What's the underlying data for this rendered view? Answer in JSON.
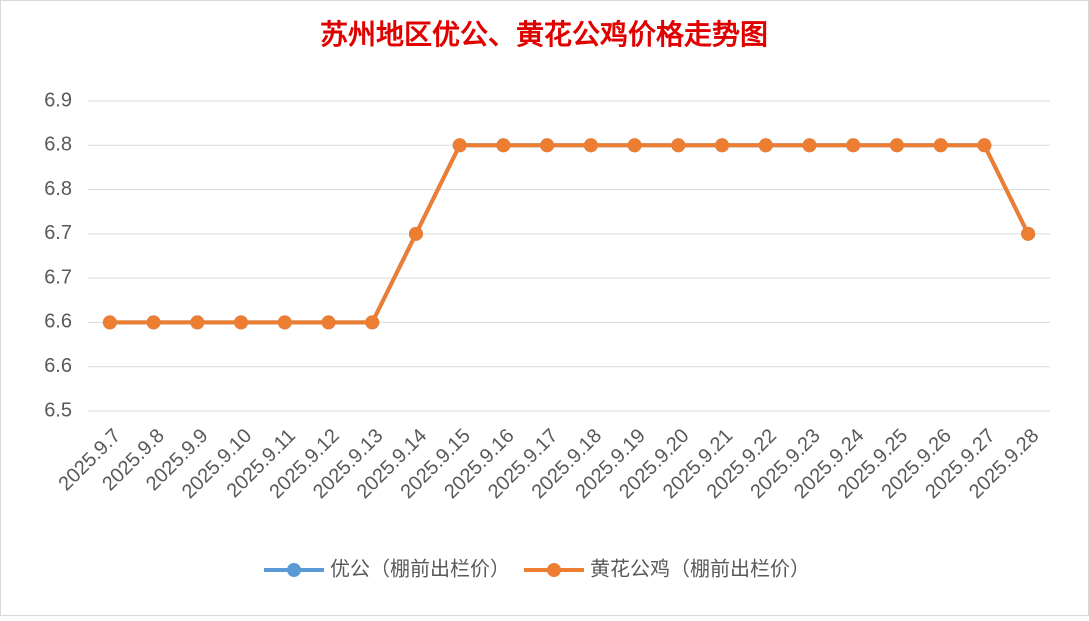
{
  "chart_data": {
    "type": "line",
    "title": "苏州地区优公、黄花公鸡价格走势图",
    "categories": [
      "2025.9.7",
      "2025.9.8",
      "2025.9.9",
      "2025.9.10",
      "2025.9.11",
      "2025.9.12",
      "2025.9.13",
      "2025.9.14",
      "2025.9.15",
      "2025.9.16",
      "2025.9.17",
      "2025.9.18",
      "2025.9.19",
      "2025.9.20",
      "2025.9.21",
      "2025.9.22",
      "2025.9.23",
      "2025.9.24",
      "2025.9.25",
      "2025.9.26",
      "2025.9.27",
      "2025.9.28"
    ],
    "series": [
      {
        "name": "优公（棚前出栏价）",
        "color": "#5b9bd5",
        "values": [
          6.6,
          6.6,
          6.6,
          6.6,
          6.6,
          6.6,
          6.6,
          6.7,
          6.8,
          6.8,
          6.8,
          6.8,
          6.8,
          6.8,
          6.8,
          6.8,
          6.8,
          6.8,
          6.8,
          6.8,
          6.8,
          6.7
        ]
      },
      {
        "name": "黄花公鸡（棚前出栏价）",
        "color": "#ed7d31",
        "values": [
          6.6,
          6.6,
          6.6,
          6.6,
          6.6,
          6.6,
          6.6,
          6.7,
          6.8,
          6.8,
          6.8,
          6.8,
          6.8,
          6.8,
          6.8,
          6.8,
          6.8,
          6.8,
          6.8,
          6.8,
          6.8,
          6.7
        ]
      }
    ],
    "ylim": [
      6.5,
      6.85
    ],
    "yticks": [
      6.5,
      {
        "value": 6.55,
        "label": "6.6"
      },
      6.6,
      {
        "value": 6.65,
        "label": "6.7"
      },
      6.7,
      {
        "value": 6.75,
        "label": "6.8"
      },
      6.8,
      {
        "value": 6.85,
        "label": "6.9"
      }
    ],
    "grid": true,
    "legend": "bottom"
  }
}
